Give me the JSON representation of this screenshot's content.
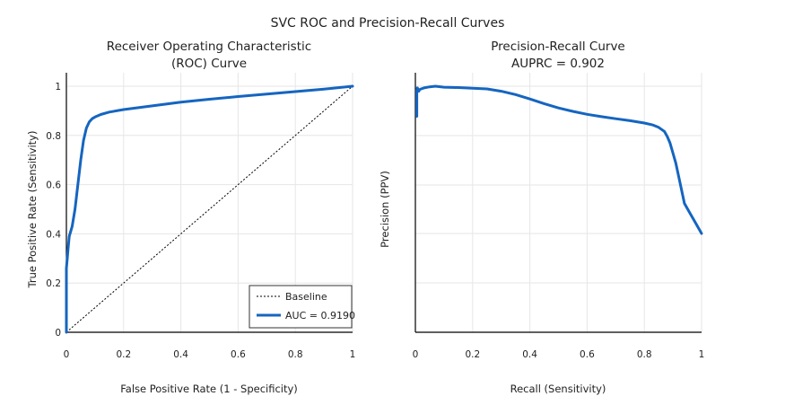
{
  "suptitle": "SVC ROC and Precision-Recall Curves",
  "chart_data": [
    {
      "type": "line",
      "title": "Receiver Operating Characteristic",
      "title_line2": "(ROC) Curve",
      "xlabel": "False Positive Rate (1 - Specificity)",
      "ylabel": "True Positive Rate (Sensitivity)",
      "xlim": [
        0,
        1
      ],
      "ylim": [
        0,
        1
      ],
      "xticks": [
        "0",
        "0.2",
        "0.4",
        "0.6",
        "0.8",
        "1"
      ],
      "yticks": [
        "0",
        "0.2",
        "0.4",
        "0.6",
        "0.8",
        "1"
      ],
      "grid": true,
      "legend": {
        "placement": "bottom-right",
        "entries": [
          "Baseline",
          "AUC = 0.9190"
        ]
      },
      "series": [
        {
          "name": "AUC = 0.9190",
          "color": "#1565c0",
          "style": "solid",
          "x": [
            0,
            0,
            0.003,
            0.006,
            0.01,
            0.015,
            0.02,
            0.03,
            0.04,
            0.05,
            0.06,
            0.07,
            0.08,
            0.09,
            0.1,
            0.12,
            0.15,
            0.2,
            0.3,
            0.4,
            0.5,
            0.6,
            0.7,
            0.8,
            0.9,
            0.95,
            1
          ],
          "y": [
            0,
            0.26,
            0.3,
            0.34,
            0.39,
            0.41,
            0.43,
            0.5,
            0.6,
            0.7,
            0.78,
            0.83,
            0.855,
            0.868,
            0.875,
            0.885,
            0.895,
            0.905,
            0.92,
            0.935,
            0.947,
            0.958,
            0.968,
            0.978,
            0.988,
            0.994,
            1
          ]
        },
        {
          "name": "Baseline",
          "color": "#000000",
          "style": "dotted",
          "x": [
            0,
            1
          ],
          "y": [
            0,
            1
          ]
        }
      ]
    },
    {
      "type": "line",
      "title": "Precision-Recall Curve",
      "title_line2": "AUPRC = 0.902",
      "xlabel": "Recall (Sensitivity)",
      "ylabel": "Precision (PPV)",
      "xlim": [
        0,
        1
      ],
      "xticks": [
        "0",
        "0.2",
        "0.4",
        "0.6",
        "0.8",
        "1"
      ],
      "grid": true,
      "series": [
        {
          "color": "#1565c0",
          "style": "solid",
          "x": [
            0.005,
            0.005,
            0.007,
            0.01,
            0.012,
            0.015,
            0.02,
            0.03,
            0.05,
            0.07,
            0.1,
            0.15,
            0.2,
            0.25,
            0.3,
            0.35,
            0.4,
            0.45,
            0.5,
            0.55,
            0.6,
            0.65,
            0.7,
            0.75,
            0.8,
            0.83,
            0.85,
            0.87,
            0.88,
            0.89,
            0.9,
            0.91,
            0.92,
            0.93,
            0.94,
            0.96,
            0.98,
            1
          ],
          "y": [
            0.91,
            0.99,
            0.995,
            0.99,
            0.985,
            0.99,
            0.992,
            0.995,
            0.998,
            1.0,
            0.997,
            0.996,
            0.994,
            0.992,
            0.985,
            0.975,
            0.962,
            0.948,
            0.935,
            0.925,
            0.916,
            0.909,
            0.903,
            0.897,
            0.89,
            0.884,
            0.877,
            0.865,
            0.85,
            0.83,
            0.8,
            0.77,
            0.73,
            0.69,
            0.65,
            0.62,
            0.59,
            0.56
          ]
        }
      ]
    }
  ]
}
